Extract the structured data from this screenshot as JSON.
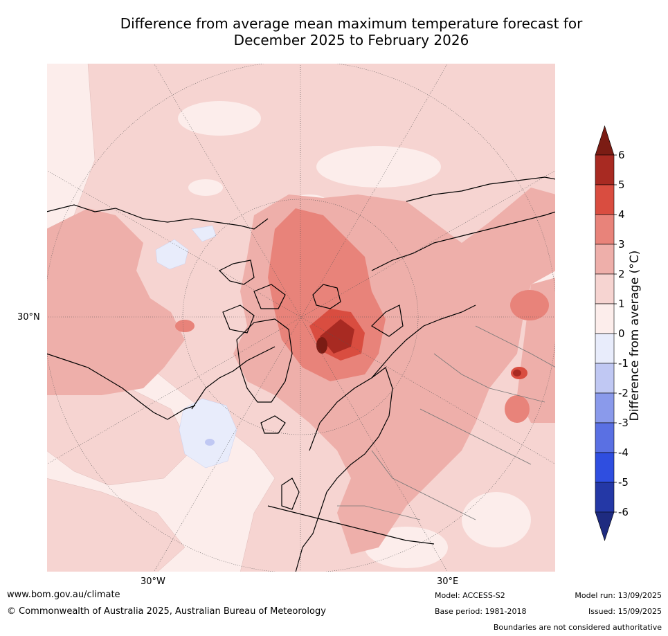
{
  "title_line1": "Difference from average mean maximum temperature forecast for",
  "title_line2": "December 2025 to February 2026",
  "map": {
    "projection": "north-polar-stereographic",
    "lat_label_left": "30°N",
    "lon_labels": [
      "30°W",
      "30°E"
    ]
  },
  "colorbar": {
    "title": "Difference from average (°C)",
    "ticks": [
      "6",
      "5",
      "4",
      "3",
      "2",
      "1",
      "0",
      "-1",
      "-2",
      "-3",
      "-4",
      "-5",
      "-6"
    ],
    "colors": [
      "#7b1c14",
      "#a82a22",
      "#d94d40",
      "#e8837a",
      "#eeafaa",
      "#f6d4d1",
      "#fcedeb",
      "#e8ecfb",
      "#c0c8f3",
      "#8a9aeb",
      "#5a70e3",
      "#2f4ee0",
      "#2438a6",
      "#1e2b80"
    ]
  },
  "legend_classes": [
    {
      "label": "above 6",
      "color": "#7b1c14"
    },
    {
      "label": "5 to 6",
      "color": "#a82a22"
    },
    {
      "label": "4 to 5",
      "color": "#d94d40"
    },
    {
      "label": "3 to 4",
      "color": "#e8837a"
    },
    {
      "label": "2 to 3",
      "color": "#eeafaa"
    },
    {
      "label": "1 to 2",
      "color": "#f6d4d1"
    },
    {
      "label": "0 to 1",
      "color": "#fcedeb"
    },
    {
      "label": "-1 to 0",
      "color": "#e8ecfb"
    }
  ],
  "footer": {
    "url": "www.bom.gov.au/climate",
    "copyright": "© Commonwealth of Australia 2025, Australian Bureau of Meteorology",
    "model": "Model: ACCESS-S2",
    "base_period": "Base period: 1981-2018",
    "model_run": "Model run: 13/09/2025",
    "issued": "Issued: 15/09/2025",
    "disclaimer": "Boundaries are not considered authoritative"
  }
}
